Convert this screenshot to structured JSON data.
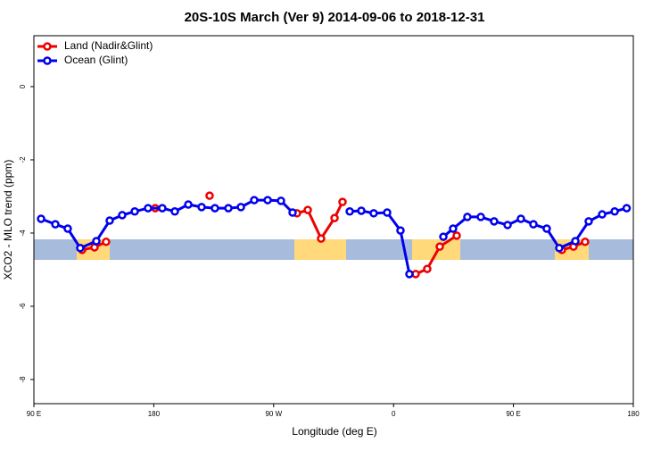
{
  "chart_data": {
    "type": "line",
    "title": "20S-10S March (Ver 9)   2014-09-06 to 2018-12-31",
    "x_label": "Longitude (deg E)",
    "y_label": "XCO2 - MLO trend (ppm)",
    "xlim": [
      90,
      540
    ],
    "ylim": [
      -8.66,
      1.39
    ],
    "xticks": [
      {
        "value": 90,
        "label": "90 E"
      },
      {
        "value": 180,
        "label": "180"
      },
      {
        "value": 270,
        "label": "90 W"
      },
      {
        "value": 360,
        "label": "0"
      },
      {
        "value": 450,
        "label": "90 E"
      },
      {
        "value": 540,
        "label": "180"
      }
    ],
    "yticks": [
      0,
      -2,
      -4,
      -6,
      -8
    ],
    "legend": "top-left",
    "series": [
      {
        "name": "Land (Nadir&Glint)",
        "color": "#ee0000",
        "x": [
          126.2,
          135.5,
          144.2,
          null,
          181.1,
          null,
          221.9,
          null,
          287.5,
          295.6,
          305.6,
          315.7,
          321.7,
          null,
          376.6,
          385.3,
          394.7,
          407.4,
          null,
          486.4,
          495.1,
          503.8
        ],
        "values": [
          -4.46,
          -4.39,
          -4.24,
          null,
          -3.32,
          null,
          -2.98,
          null,
          -3.46,
          -3.37,
          -4.15,
          -3.59,
          -3.15,
          null,
          -5.12,
          -4.98,
          -4.37,
          -4.07,
          null,
          -4.46,
          -4.37,
          -4.24
        ]
      },
      {
        "name": "Ocean (Glint)",
        "color": "#0000ee",
        "x": [
          95.4,
          106.1,
          115.4,
          124.8,
          136.9,
          146.9,
          156.3,
          165.7,
          175.7,
          186.4,
          195.8,
          205.9,
          215.9,
          225.9,
          236.0,
          245.4,
          255.4,
          265.5,
          275.5,
          284.2,
          null,
          327.1,
          335.8,
          345.1,
          355.2,
          365.2,
          371.9,
          null,
          397.4,
          404.7,
          415.4,
          425.5,
          435.5,
          445.6,
          455.6,
          465.0,
          475.0,
          484.4,
          496.5,
          506.5,
          516.6,
          526.0,
          535.0
        ],
        "values": [
          -3.61,
          -3.76,
          -3.88,
          -4.41,
          -4.22,
          -3.66,
          -3.51,
          -3.41,
          -3.32,
          -3.32,
          -3.41,
          -3.22,
          -3.29,
          -3.32,
          -3.32,
          -3.29,
          -3.1,
          -3.1,
          -3.12,
          -3.44,
          null,
          -3.41,
          -3.39,
          -3.46,
          -3.44,
          -3.93,
          -5.12,
          null,
          -4.1,
          -3.88,
          -3.56,
          -3.56,
          -3.68,
          -3.78,
          -3.61,
          -3.76,
          -3.88,
          -4.41,
          -4.22,
          -3.68,
          -3.49,
          -3.41,
          -3.32
        ]
      }
    ]
  }
}
